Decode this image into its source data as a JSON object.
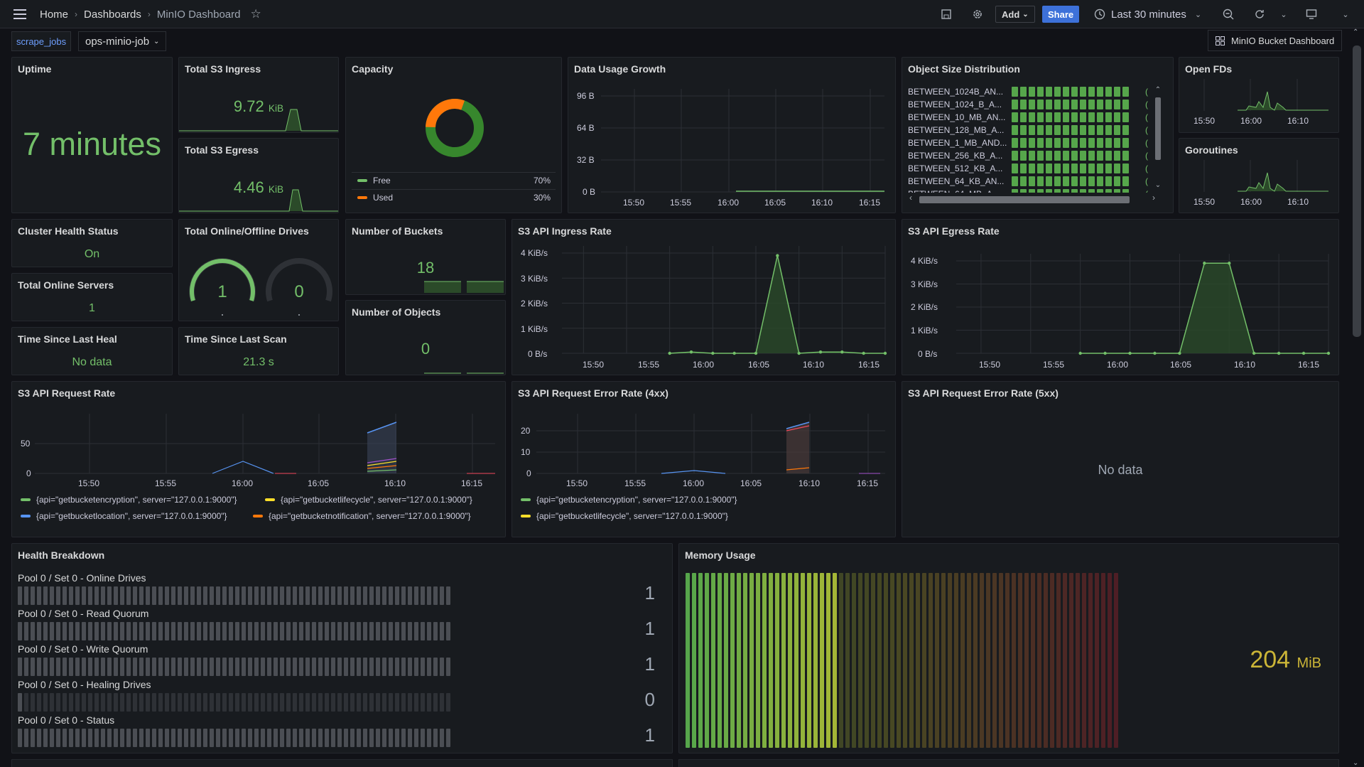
{
  "breadcrumb": {
    "home": "Home",
    "dashboards": "Dashboards",
    "current": "MinIO Dashboard"
  },
  "toolbar": {
    "add_label": "Add",
    "share_label": "Share",
    "time_range": "Last 30 minutes"
  },
  "variables": {
    "label": "scrape_jobs",
    "value": "ops-minio-job"
  },
  "dashboard_link": "MinIO Bucket Dashboard",
  "colors": {
    "green": "#73bf69",
    "orange": "#ff780a",
    "yellow": "#fade2a",
    "blue": "#5794f2",
    "background": "#111217",
    "panel": "#181b1f"
  },
  "panels": {
    "uptime": {
      "title": "Uptime",
      "value": "7 minutes"
    },
    "ingress": {
      "title": "Total S3 Ingress",
      "value": "9.72",
      "unit": "KiB"
    },
    "egress": {
      "title": "Total S3 Egress",
      "value": "4.46",
      "unit": "KiB"
    },
    "capacity": {
      "title": "Capacity",
      "legend": [
        {
          "name": "Free",
          "value": "70%"
        },
        {
          "name": "Used",
          "value": "30%"
        }
      ]
    },
    "data_usage": {
      "title": "Data Usage Growth",
      "yticks": [
        "96 B",
        "64 B",
        "32 B",
        "0 B"
      ],
      "xticks": [
        "15:50",
        "15:55",
        "16:00",
        "16:05",
        "16:10",
        "16:15"
      ]
    },
    "object_size": {
      "title": "Object Size Distribution",
      "rows": [
        "BETWEEN_1024B_AN...",
        "BETWEEN_1024_B_A...",
        "BETWEEN_10_MB_AN...",
        "BETWEEN_128_MB_A...",
        "BETWEEN_1_MB_AND...",
        "BETWEEN_256_KB_A...",
        "BETWEEN_512_KB_A...",
        "BETWEEN_64_KB_AN...",
        "BETWEEN_64_MB_A..."
      ]
    },
    "open_fds": {
      "title": "Open FDs",
      "xticks": [
        "15:50",
        "16:00",
        "16:10"
      ]
    },
    "goroutines": {
      "title": "Goroutines",
      "xticks": [
        "15:50",
        "16:00",
        "16:10"
      ]
    },
    "cluster_health": {
      "title": "Cluster Health Status",
      "value": "On"
    },
    "online_servers": {
      "title": "Total Online Servers",
      "value": "1"
    },
    "last_heal": {
      "title": "Time Since Last Heal",
      "value": "No data"
    },
    "drives": {
      "title": "Total Online/Offline Drives",
      "online": "1",
      "offline": "0"
    },
    "last_scan": {
      "title": "Time Since Last Scan",
      "value": "21.3 s"
    },
    "buckets": {
      "title": "Number of Buckets",
      "value": "18"
    },
    "objects": {
      "title": "Number of Objects",
      "value": "0"
    },
    "ingress_rate": {
      "title": "S3 API Ingress Rate",
      "yticks": [
        "4 KiB/s",
        "3 KiB/s",
        "2 KiB/s",
        "1 KiB/s",
        "0 B/s"
      ],
      "xticks": [
        "15:50",
        "15:55",
        "16:00",
        "16:05",
        "16:10",
        "16:15"
      ]
    },
    "egress_rate": {
      "title": "S3 API Egress Rate",
      "yticks": [
        "4 KiB/s",
        "3 KiB/s",
        "2 KiB/s",
        "1 KiB/s",
        "0 B/s"
      ],
      "xticks": [
        "15:50",
        "15:55",
        "16:00",
        "16:05",
        "16:10",
        "16:15"
      ]
    },
    "request_rate": {
      "title": "S3 API Request Rate",
      "yticks": [
        "50",
        "0"
      ],
      "xticks": [
        "15:50",
        "15:55",
        "16:00",
        "16:05",
        "16:10",
        "16:15"
      ],
      "legend": [
        "{api=\"getbucketencryption\", server=\"127.0.0.1:9000\"}",
        "{api=\"getbucketlifecycle\", server=\"127.0.0.1:9000\"}",
        "{api=\"getbucketlocation\", server=\"127.0.0.1:9000\"}",
        "{api=\"getbucketnotification\", server=\"127.0.0.1:9000\"}"
      ]
    },
    "error_4xx": {
      "title": "S3 API Request Error Rate (4xx)",
      "yticks": [
        "20",
        "10",
        "0"
      ],
      "xticks": [
        "15:50",
        "15:55",
        "16:00",
        "16:05",
        "16:10",
        "16:15"
      ],
      "legend": [
        "{api=\"getbucketencryption\", server=\"127.0.0.1:9000\"}",
        "{api=\"getbucketlifecycle\", server=\"127.0.0.1:9000\"}"
      ]
    },
    "error_5xx": {
      "title": "S3 API Request Error Rate (5xx)",
      "value": "No data"
    },
    "health": {
      "title": "Health Breakdown",
      "rows": [
        {
          "label": "Pool 0 / Set 0 - Online Drives",
          "value": "1",
          "fill": 1
        },
        {
          "label": "Pool 0 / Set 0 - Read Quorum",
          "value": "1",
          "fill": 1
        },
        {
          "label": "Pool 0 / Set 0 - Write Quorum",
          "value": "1",
          "fill": 1
        },
        {
          "label": "Pool 0 / Set 0 - Healing Drives",
          "value": "0",
          "fill": 0
        },
        {
          "label": "Pool 0 / Set 0 - Status",
          "value": "1",
          "fill": 1
        }
      ]
    },
    "memory": {
      "title": "Memory Usage",
      "value": "204",
      "unit": "MiB",
      "fill": 0.35
    }
  },
  "chart_data": [
    {
      "type": "line",
      "title": "S3 API Ingress Rate",
      "x": [
        "15:48",
        "15:50",
        "15:52",
        "15:54",
        "15:56",
        "15:58",
        "16:00",
        "16:02",
        "16:04",
        "16:06",
        "16:08",
        "16:10",
        "16:12",
        "16:14",
        "16:16",
        "16:18"
      ],
      "series": [
        {
          "values": [
            null,
            null,
            null,
            null,
            null,
            0,
            0.05,
            0,
            0,
            0,
            3.9,
            0,
            0.05,
            0.05,
            0,
            0
          ]
        }
      ],
      "ylabel": "",
      "ylim": [
        0,
        4
      ]
    },
    {
      "type": "line",
      "title": "S3 API Egress Rate",
      "x": [
        "15:48",
        "15:50",
        "15:52",
        "15:54",
        "15:56",
        "15:58",
        "16:00",
        "16:02",
        "16:04",
        "16:06",
        "16:08",
        "16:10",
        "16:12",
        "16:14",
        "16:16",
        "16:18"
      ],
      "series": [
        {
          "values": [
            null,
            null,
            null,
            null,
            null,
            0,
            0,
            0,
            0,
            0,
            3.9,
            3.9,
            0,
            0,
            0,
            0
          ]
        }
      ],
      "ylim": [
        0,
        4
      ]
    },
    {
      "type": "pie",
      "title": "Capacity",
      "categories": [
        "Free",
        "Used"
      ],
      "values": [
        70,
        30
      ]
    }
  ]
}
